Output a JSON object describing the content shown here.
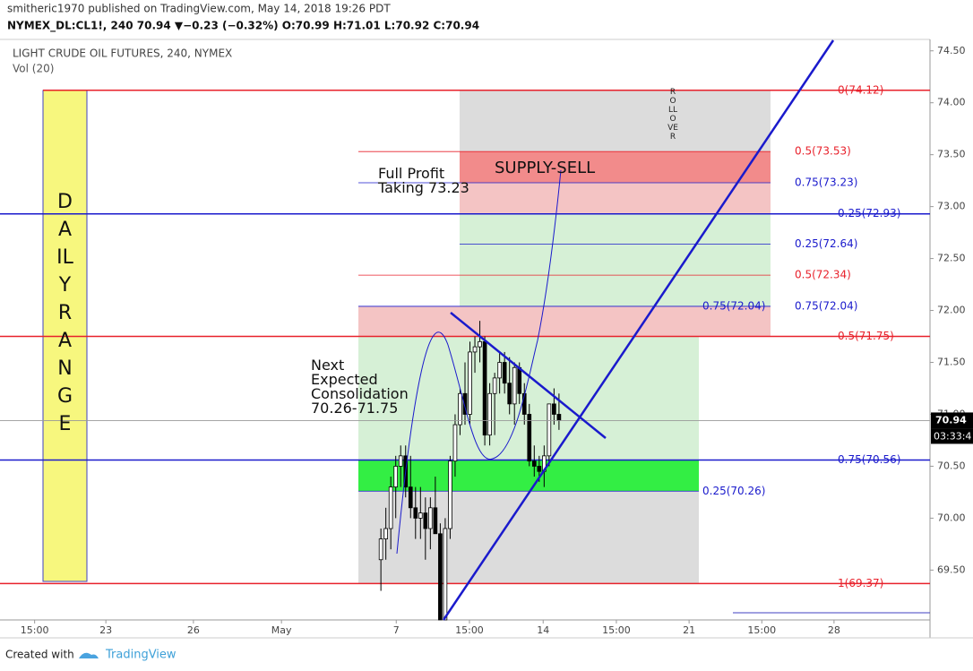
{
  "header": {
    "publisher": "smitheric1970 published on TradingView.com, May 14, 2018 19:26 PDT",
    "quote": "NYMEX_DL:CL1!, 240 70.94 ▼−0.23 (−0.32%) O:70.99 H:71.01 L:70.92 C:70.94"
  },
  "chart_data": {
    "type": "candlestick",
    "title": "LIGHT CRUDE OIL FUTURES, 240, NYMEX",
    "subtitle": "Vol (20)",
    "x": [
      77,
      78,
      79,
      80,
      81,
      82,
      83,
      84,
      85,
      86,
      87,
      88,
      89,
      90,
      91,
      92,
      93,
      94,
      95,
      96,
      97,
      98,
      99,
      100,
      101,
      102,
      103,
      104,
      105,
      106,
      107,
      108,
      109,
      110,
      111,
      112,
      113
    ],
    "open": [
      69.6,
      69.8,
      69.9,
      70.3,
      70.5,
      70.6,
      70.3,
      70.1,
      70.0,
      70.05,
      69.9,
      70.1,
      69.85,
      69.0,
      69.9,
      70.55,
      70.9,
      71.2,
      71.0,
      71.6,
      71.65,
      71.7,
      70.8,
      71.2,
      71.35,
      71.5,
      71.3,
      71.1,
      71.45,
      71.2,
      71.0,
      70.55,
      70.5,
      70.45,
      70.6,
      71.1,
      71.0
    ],
    "high": [
      69.9,
      70.1,
      70.4,
      70.6,
      70.7,
      70.7,
      70.6,
      70.3,
      70.3,
      70.2,
      70.2,
      70.4,
      69.95,
      70.0,
      70.6,
      71.0,
      71.25,
      71.5,
      71.7,
      71.75,
      71.9,
      71.75,
      71.3,
      71.4,
      71.6,
      71.6,
      71.55,
      71.5,
      71.5,
      71.3,
      71.1,
      70.7,
      70.6,
      70.7,
      71.1,
      71.25,
      71.2
    ],
    "low": [
      69.3,
      69.6,
      69.7,
      70.0,
      70.3,
      70.2,
      70.0,
      69.8,
      69.8,
      69.6,
      69.7,
      69.9,
      68.9,
      68.95,
      69.8,
      70.4,
      70.8,
      70.9,
      70.9,
      71.4,
      71.5,
      70.7,
      70.7,
      70.8,
      71.2,
      71.2,
      71.0,
      70.9,
      71.1,
      70.9,
      70.5,
      70.4,
      70.35,
      70.3,
      70.5,
      70.9,
      70.85
    ],
    "close": [
      69.8,
      69.9,
      70.3,
      70.5,
      70.6,
      70.3,
      70.1,
      70.0,
      70.05,
      69.9,
      70.1,
      69.85,
      69.0,
      69.9,
      70.55,
      70.9,
      71.2,
      71.0,
      71.6,
      71.65,
      71.7,
      70.8,
      71.2,
      71.35,
      71.5,
      71.3,
      71.1,
      71.45,
      71.2,
      71.0,
      70.55,
      70.5,
      70.45,
      70.6,
      71.1,
      71.0,
      70.94
    ],
    "xlim": [
      0,
      188
    ],
    "xticks": [
      {
        "value": 7,
        "label": "15:00"
      },
      {
        "value": 21.4,
        "label": "23"
      },
      {
        "value": 39.1,
        "label": "26"
      },
      {
        "value": 56.9,
        "label": "May"
      },
      {
        "value": 80.1,
        "label": "7"
      },
      {
        "value": 94.9,
        "label": "15:00"
      },
      {
        "value": 109.8,
        "label": "14"
      },
      {
        "value": 124.6,
        "label": "15:00"
      },
      {
        "value": 139.3,
        "label": "21"
      },
      {
        "value": 154,
        "label": "15:00"
      },
      {
        "value": 168.6,
        "label": "28"
      }
    ],
    "ylim": [
      69.02,
      74.61
    ],
    "yticks": [
      {
        "value": 69.5,
        "label": "69.50"
      },
      {
        "value": 70,
        "label": "70.00"
      },
      {
        "value": 70.5,
        "label": "70.50"
      },
      {
        "value": 71,
        "label": "71.00"
      },
      {
        "value": 71.5,
        "label": "71.50"
      },
      {
        "value": 72,
        "label": "72.00"
      },
      {
        "value": 72.5,
        "label": "72.50"
      },
      {
        "value": 73,
        "label": "73.00"
      },
      {
        "value": 73.5,
        "label": "73.50"
      },
      {
        "value": 74,
        "label": "74.00"
      },
      {
        "value": 74.5,
        "label": "74.50"
      }
    ],
    "last_price": 70.94,
    "countdown": "03:33:4",
    "levels": [
      {
        "price": 74.12,
        "label": "0(74.12)",
        "color": "#e8212b"
      },
      {
        "price": 73.53,
        "label": "0.5(73.53)",
        "color": "#e8212b"
      },
      {
        "price": 73.23,
        "label": "0.75(73.23)",
        "color": "#1a1acc"
      },
      {
        "price": 72.93,
        "label": "0.25(72.93)",
        "color": "#1a1acc"
      },
      {
        "price": 72.64,
        "label": "0.25(72.64)",
        "color": "#1a1acc"
      },
      {
        "price": 72.34,
        "label": "0.5(72.34)",
        "color": "#e8212b"
      },
      {
        "price": 72.04,
        "label": "0.75(72.04)",
        "color": "#1a1acc"
      },
      {
        "price": 71.75,
        "label": "0.5(71.75)",
        "color": "#e8212b"
      },
      {
        "price": 70.56,
        "label": "0.75(70.56)",
        "color": "#1a1acc"
      },
      {
        "price": 70.26,
        "label": "0.25(70.26)",
        "color": "#1a1acc"
      },
      {
        "price": 69.37,
        "label": "1(69.37)",
        "color": "#e8212b"
      }
    ],
    "left_fib_label": "0.75(72.04)",
    "annotations": {
      "supply": "SUPPLY-SELL",
      "profit": "Full Profit\nTaking 73.23",
      "consolidation": "Next\nExpected\nConsolidation\n70.26-71.75",
      "daily_range": "DAILY  RANGE",
      "rollover": "ROLLOVER"
    }
  },
  "footer": {
    "created": "Created with",
    "brand": "TradingView"
  }
}
